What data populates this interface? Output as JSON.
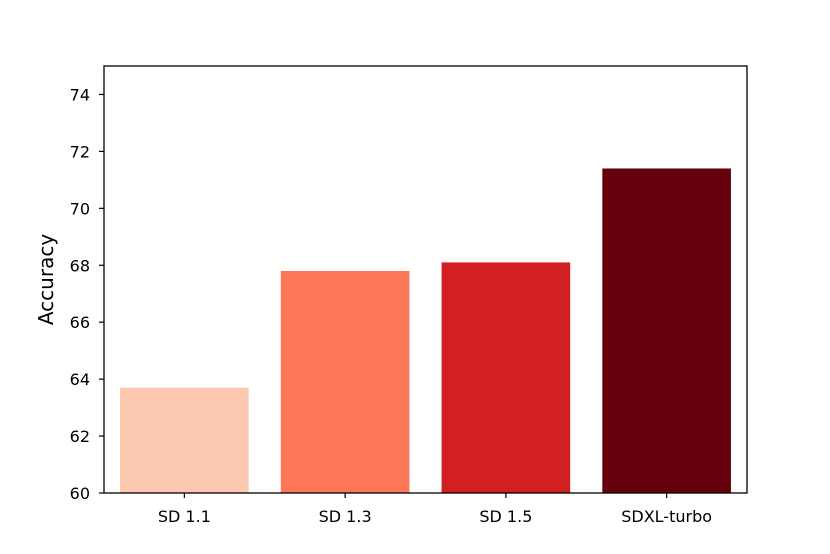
{
  "chart_data": {
    "type": "bar",
    "title": "",
    "xlabel": "",
    "ylabel": "Accuracy",
    "categories": [
      "SD 1.1",
      "SD 1.3",
      "SD 1.5",
      "SDXL-turbo"
    ],
    "values": [
      63.7,
      67.8,
      68.1,
      71.4
    ],
    "bar_colors": [
      "#fcc8b0",
      "#fb7757",
      "#d21f20",
      "#67000d"
    ],
    "ylim": [
      60,
      75
    ],
    "yticks": [
      60,
      62,
      64,
      66,
      68,
      70,
      72,
      74
    ],
    "ytick_labels": [
      "60",
      "62",
      "64",
      "66",
      "68",
      "70",
      "72",
      "74"
    ],
    "grid": false,
    "legend": "none"
  }
}
